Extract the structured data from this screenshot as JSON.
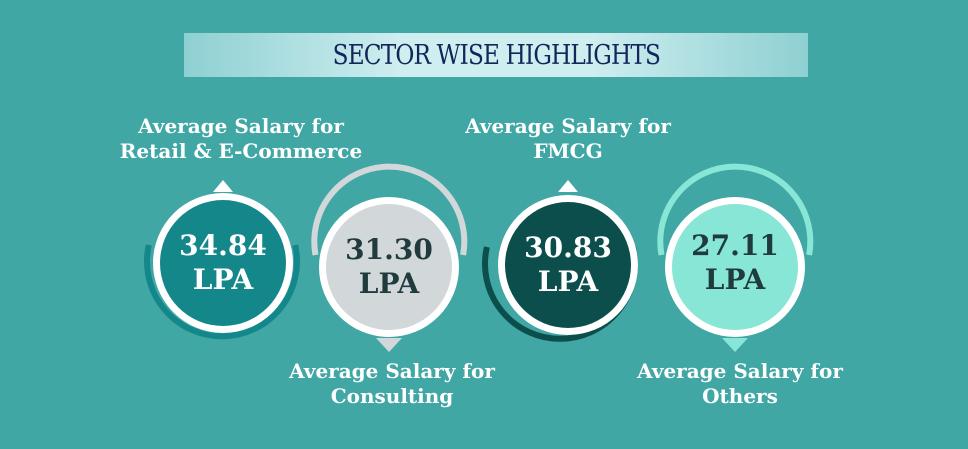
{
  "header": {
    "title": "SECTOR WISE HIGHLIGHTS"
  },
  "sectors": [
    {
      "value": "34.84",
      "unit": "LPA",
      "label_line1": "Average Salary for",
      "label_line2": "Retail & E-Commerce",
      "color": "#14878a",
      "text_color": "#ffffff"
    },
    {
      "value": "31.30",
      "unit": "LPA",
      "label_line1": "Average Salary for",
      "label_line2": "Consulting",
      "color": "#d2d7da",
      "text_color": "#1f3b3d"
    },
    {
      "value": "30.83",
      "unit": "LPA",
      "label_line1": "Average Salary for",
      "label_line2": "FMCG",
      "color": "#0c4e4c",
      "text_color": "#ffffff"
    },
    {
      "value": "27.11",
      "unit": "LPA",
      "label_line1": "Average Salary for",
      "label_line2": "Others",
      "color": "#87e6d5",
      "text_color": "#1f3b3d"
    }
  ],
  "colors": {
    "background": "#40a7a5",
    "banner": "#cfeef0",
    "title": "#12265a"
  }
}
